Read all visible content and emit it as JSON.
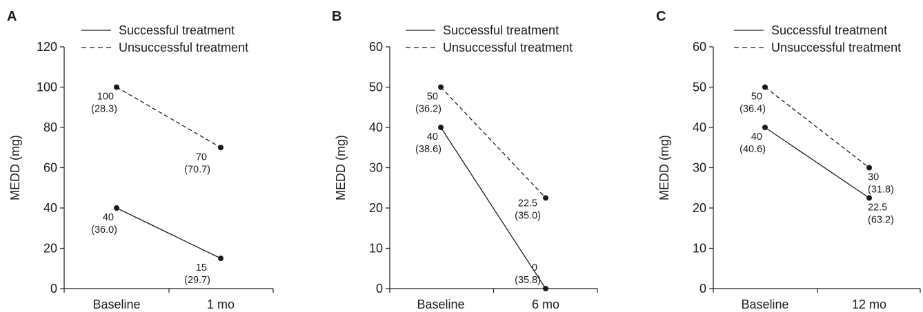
{
  "chart_data": [
    {
      "type": "line",
      "panel": "A",
      "ylabel": "MEDD (mg)",
      "xlabel": "",
      "categories": [
        "Baseline",
        "1 mo"
      ],
      "ylim": [
        0,
        120
      ],
      "yticks": [
        0,
        20,
        40,
        60,
        80,
        100,
        120
      ],
      "legend_position": "top-right",
      "grid": false,
      "series": [
        {
          "name": "Successful treatment",
          "style": "solid",
          "values": [
            40,
            15
          ],
          "labels": [
            [
              "40",
              "(36.0)"
            ],
            [
              "15",
              "(29.7)"
            ]
          ]
        },
        {
          "name": "Unsuccessful treatment",
          "style": "dashed",
          "values": [
            100,
            70
          ],
          "labels": [
            [
              "100",
              "(28.3)"
            ],
            [
              "70",
              "(70.7)"
            ]
          ]
        }
      ]
    },
    {
      "type": "line",
      "panel": "B",
      "ylabel": "MEDD (mg)",
      "xlabel": "",
      "categories": [
        "Baseline",
        "6 mo"
      ],
      "ylim": [
        0,
        60
      ],
      "yticks": [
        0,
        10,
        20,
        30,
        40,
        50,
        60
      ],
      "legend_position": "top-right",
      "grid": false,
      "series": [
        {
          "name": "Successful treatment",
          "style": "solid",
          "values": [
            40,
            0
          ],
          "labels": [
            [
              "40",
              "(38.6)"
            ],
            [
              "0",
              "(35.8)"
            ]
          ]
        },
        {
          "name": "Unsuccessful treatment",
          "style": "dashed",
          "values": [
            50,
            22.5
          ],
          "labels": [
            [
              "50",
              "(36.2)"
            ],
            [
              "22.5",
              "(35.0)"
            ]
          ]
        }
      ]
    },
    {
      "type": "line",
      "panel": "C",
      "ylabel": "MEDD (mg)",
      "xlabel": "",
      "categories": [
        "Baseline",
        "12 mo"
      ],
      "ylim": [
        0,
        60
      ],
      "yticks": [
        0,
        10,
        20,
        30,
        40,
        50,
        60
      ],
      "legend_position": "top-right",
      "grid": false,
      "series": [
        {
          "name": "Successful treatment",
          "style": "solid",
          "values": [
            40,
            22.5
          ],
          "labels": [
            [
              "40",
              "(40.6)"
            ],
            [
              "22.5",
              "(63.2)"
            ]
          ]
        },
        {
          "name": "Unsuccessful treatment",
          "style": "dashed",
          "values": [
            50,
            30
          ],
          "labels": [
            [
              "50",
              "(36.4)"
            ],
            [
              "30",
              "(31.8)"
            ]
          ]
        }
      ]
    }
  ]
}
